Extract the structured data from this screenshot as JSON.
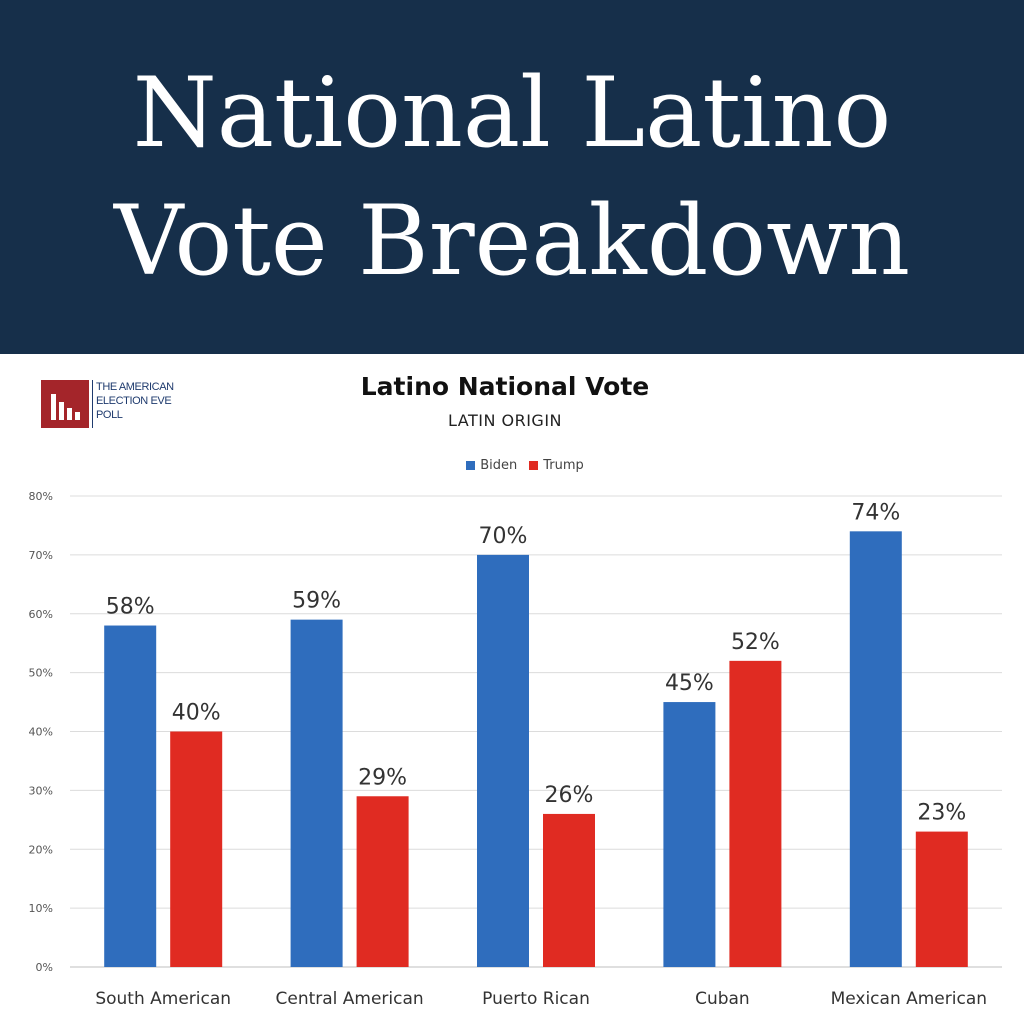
{
  "banner": {
    "line1": "National Latino",
    "line2": "Vote Breakdown"
  },
  "logo": {
    "line1": "THE AMERICAN",
    "line2": "ELECTION EVE",
    "line3": "POLL"
  },
  "colors": {
    "banner_bg": "#162f4a",
    "biden": "#2f6dbd",
    "trump": "#e02b22",
    "logo": "#a4252a"
  },
  "chart_data": {
    "type": "bar",
    "title": "Latino National Vote",
    "subtitle": "LATIN ORIGIN",
    "categories": [
      "South American",
      "Central American",
      "Puerto Rican",
      "Cuban",
      "Mexican American"
    ],
    "series": [
      {
        "name": "Biden",
        "values": [
          58,
          59,
          70,
          45,
          74
        ]
      },
      {
        "name": "Trump",
        "values": [
          40,
          29,
          26,
          52,
          23
        ]
      }
    ],
    "value_suffix": "%",
    "ylim": [
      0,
      80
    ],
    "yticks": [
      0,
      10,
      20,
      30,
      40,
      50,
      60,
      70,
      80
    ],
    "ytick_labels": [
      "0%",
      "10%",
      "20%",
      "30%",
      "40%",
      "50%",
      "60%",
      "70%",
      "80%"
    ],
    "legend": "top-center",
    "grid": true
  }
}
